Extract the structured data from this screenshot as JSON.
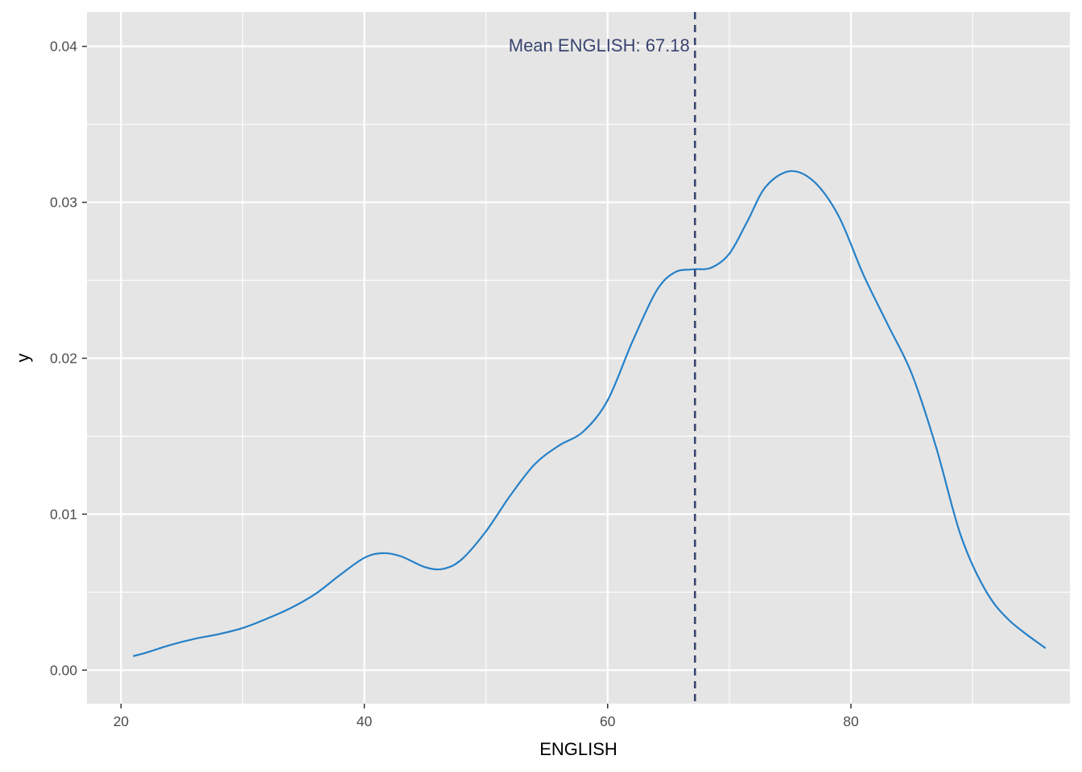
{
  "chart_data": {
    "type": "line",
    "title": "",
    "xlabel": "ENGLISH",
    "ylabel": "y",
    "xlim": [
      17.2,
      98.0
    ],
    "ylim": [
      -0.00215,
      0.0422
    ],
    "x_ticks": [
      20,
      40,
      60,
      80
    ],
    "x_tick_labels": [
      "20",
      "40",
      "60",
      "80"
    ],
    "x_minor_ticks": [
      30,
      50,
      70,
      90
    ],
    "y_ticks": [
      0.0,
      0.01,
      0.02,
      0.03,
      0.04
    ],
    "y_tick_labels": [
      "0.00",
      "0.01",
      "0.02",
      "0.03",
      "0.04"
    ],
    "y_minor_ticks": [
      0.005,
      0.015,
      0.025,
      0.035
    ],
    "grid": true,
    "legend": "none",
    "series": [
      {
        "x": [
          21,
          22,
          24,
          26,
          28,
          30,
          32,
          34,
          36,
          38,
          40,
          41.5,
          43,
          45,
          46.5,
          48,
          50,
          52,
          54,
          56,
          58,
          60,
          62,
          64,
          65.5,
          67,
          68.5,
          70,
          71.5,
          73,
          75,
          77,
          79,
          81,
          83,
          85,
          87,
          89,
          91,
          93,
          96
        ],
        "y": [
          0.0009,
          0.0011,
          0.0016,
          0.002,
          0.0023,
          0.0027,
          0.0033,
          0.004,
          0.0049,
          0.0061,
          0.0072,
          0.0075,
          0.0073,
          0.0066,
          0.0065,
          0.0071,
          0.0089,
          0.0112,
          0.0132,
          0.0144,
          0.0153,
          0.0173,
          0.021,
          0.0243,
          0.0255,
          0.0257,
          0.0258,
          0.0267,
          0.0288,
          0.031,
          0.032,
          0.0313,
          0.0291,
          0.0254,
          0.0222,
          0.019,
          0.0143,
          0.0087,
          0.0052,
          0.0032,
          0.0014
        ]
      }
    ],
    "mean_line": {
      "value": 67.18,
      "label": "Mean ENGLISH: 67.18",
      "style": "dashed"
    },
    "colors": {
      "panel_background": "#e5e5e5",
      "grid": "#ffffff",
      "density_line": "#2480c8",
      "mean_line": "#3a4470",
      "mean_label": "#3a4470",
      "tick_label": "#4d4d4d",
      "axis_title": "#000000"
    }
  }
}
